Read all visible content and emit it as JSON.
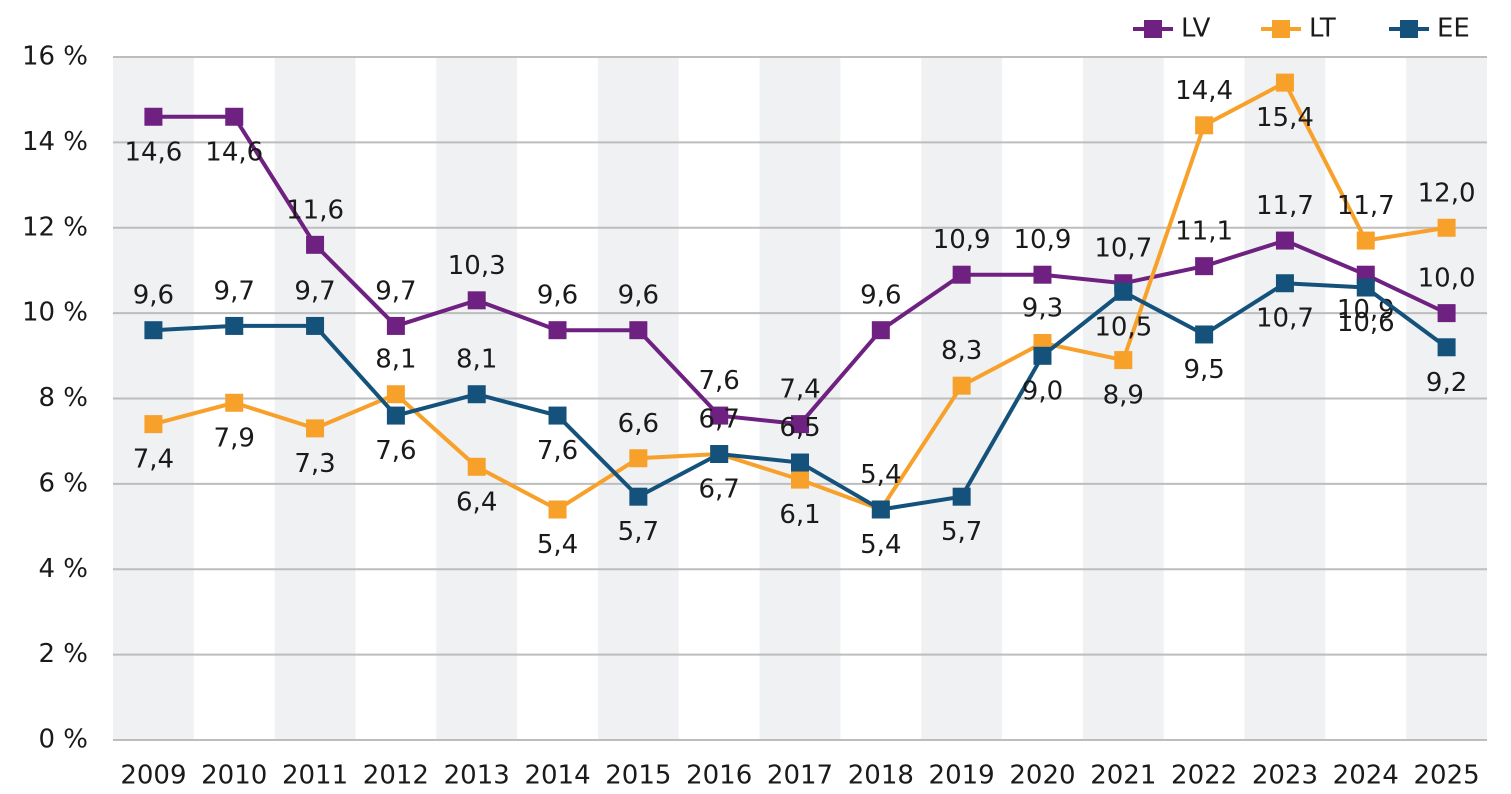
{
  "chart_data": {
    "type": "line",
    "categories": [
      "2009",
      "2010",
      "2011",
      "2012",
      "2013",
      "2014",
      "2015",
      "2016",
      "2017",
      "2018",
      "2019",
      "2020",
      "2021",
      "2022",
      "2023",
      "2024",
      "2025"
    ],
    "series": [
      {
        "name": "LV",
        "color": "#6e2180",
        "values": [
          14.6,
          14.6,
          11.6,
          9.7,
          10.3,
          9.6,
          9.6,
          7.6,
          7.4,
          9.6,
          10.9,
          10.9,
          10.7,
          11.1,
          11.7,
          10.9,
          10.0
        ],
        "value_labels": [
          "14,6",
          "14,6",
          "11,6",
          "9,7",
          "10,3",
          "9,6",
          "9,6",
          "7,6",
          "7,4",
          "9,6",
          "10,9",
          "10,9",
          "10,7",
          "11,1",
          "11,7",
          "10,9",
          "10,0"
        ]
      },
      {
        "name": "LT",
        "color": "#f7a12b",
        "values": [
          7.4,
          7.9,
          7.3,
          8.1,
          6.4,
          5.4,
          6.6,
          6.7,
          6.1,
          5.4,
          8.3,
          9.3,
          8.9,
          14.4,
          15.4,
          11.7,
          12.0
        ],
        "value_labels": [
          "7,4",
          "7,9",
          "7,3",
          "8,1",
          "6,4",
          "5,4",
          "6,6",
          "6,7",
          "6,1",
          "5,4",
          "8,3",
          "9,3",
          "8,9",
          "14,4",
          "15,4",
          "11,7",
          "12,0"
        ]
      },
      {
        "name": "EE",
        "color": "#14527c",
        "values": [
          9.6,
          9.7,
          9.7,
          7.6,
          8.1,
          7.6,
          5.7,
          6.7,
          6.5,
          5.4,
          5.7,
          9.0,
          10.5,
          9.5,
          10.7,
          10.6,
          9.2
        ],
        "value_labels": [
          "9,6",
          "9,7",
          "9,7",
          "7,6",
          "8,1",
          "7,6",
          "5,7",
          "6,7",
          "6,5",
          "5,4",
          "5,7",
          "9,0",
          "10,5",
          "9,5",
          "10,7",
          "10,6",
          "9,2"
        ]
      }
    ],
    "ylim": [
      0,
      16
    ],
    "yticks": [
      {
        "value": 0,
        "label": "0 %"
      },
      {
        "value": 2,
        "label": "2 %"
      },
      {
        "value": 4,
        "label": "4 %"
      },
      {
        "value": 6,
        "label": "6 %"
      },
      {
        "value": 8,
        "label": "8 %"
      },
      {
        "value": 10,
        "label": "10 %"
      },
      {
        "value": 12,
        "label": "12 %"
      },
      {
        "value": 14,
        "label": "14 %"
      },
      {
        "value": 16,
        "label": "16 %"
      }
    ],
    "grid": true,
    "legend": "top-right"
  }
}
